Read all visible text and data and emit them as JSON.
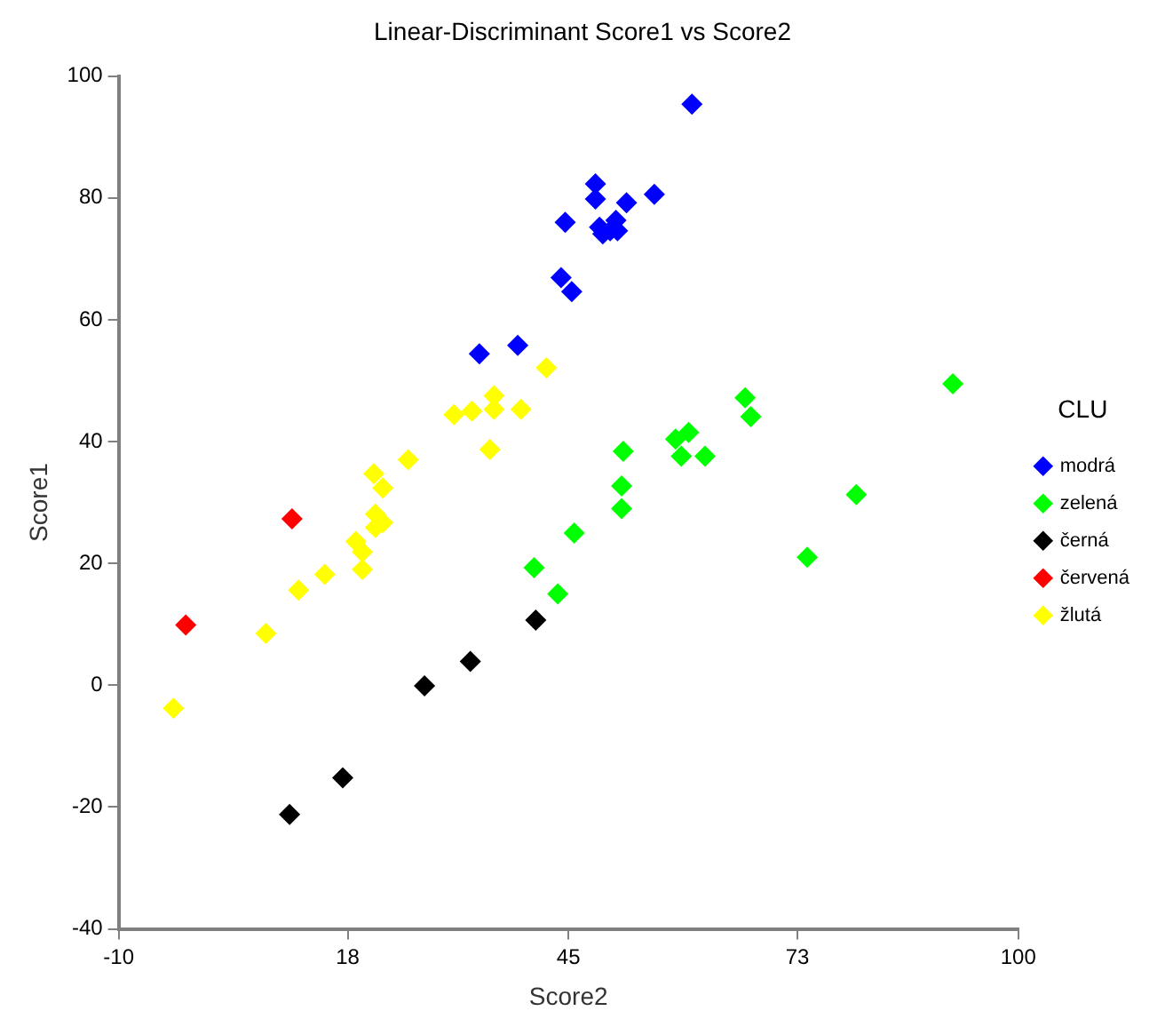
{
  "chart_data": {
    "type": "scatter",
    "title": "Linear-Discriminant Score1 vs Score2",
    "xlabel": "Score2",
    "ylabel": "Score1",
    "legend_title": "CLU",
    "legend": "right",
    "marker": "diamond",
    "grid": false,
    "xlim": [
      -10,
      100
    ],
    "xticks": [
      -10,
      18,
      45,
      73,
      100
    ],
    "ylim": [
      -40,
      100
    ],
    "yticks": [
      -40,
      -20,
      0,
      20,
      40,
      60,
      80,
      100
    ],
    "series": [
      {
        "name": "modrá",
        "color": "#0000ff",
        "x": [
          60.1,
          48.3,
          48.3,
          52.1,
          55.5,
          44.6,
          48.8,
          49.2,
          50.8,
          51.0,
          50.1,
          44.1,
          45.4,
          34.1,
          38.8
        ],
        "values": [
          95.4,
          82.3,
          79.8,
          79.2,
          80.6,
          76.0,
          75.2,
          74.1,
          76.3,
          74.6,
          74.6,
          66.9,
          64.6,
          54.4,
          55.8
        ]
      },
      {
        "name": "zelená",
        "color": "#00ff00",
        "x": [
          92.0,
          66.6,
          67.3,
          59.7,
          58.1,
          58.8,
          61.7,
          51.7,
          51.5,
          51.5,
          80.2,
          74.2,
          45.7,
          40.8,
          43.7
        ],
        "values": [
          49.5,
          47.2,
          44.1,
          41.5,
          40.4,
          37.6,
          37.6,
          38.4,
          32.7,
          29.0,
          31.3,
          21.0,
          25.0,
          19.3,
          15.0
        ]
      },
      {
        "name": "černá",
        "color": "#000000",
        "x": [
          41.0,
          33.0,
          27.4,
          17.4,
          10.9
        ],
        "values": [
          10.7,
          3.9,
          -0.1,
          -15.2,
          -21.2
        ]
      },
      {
        "name": "červená",
        "color": "#ff0000",
        "x": [
          11.2,
          -1.8
        ],
        "values": [
          27.3,
          9.9
        ]
      },
      {
        "name": "žlutá",
        "color": "#ffff00",
        "x": [
          42.3,
          35.9,
          35.9,
          39.2,
          33.2,
          31.0,
          35.4,
          25.4,
          21.2,
          22.3,
          21.4,
          22.3,
          21.4,
          19.0,
          19.8,
          19.8,
          15.2,
          12.0,
          8.0,
          -3.3
        ],
        "values": [
          52.1,
          47.5,
          45.3,
          45.3,
          45.0,
          44.4,
          38.7,
          37.0,
          34.7,
          32.4,
          28.1,
          26.7,
          25.9,
          23.6,
          21.9,
          19.0,
          18.2,
          15.6,
          8.5,
          -3.8
        ]
      }
    ]
  }
}
